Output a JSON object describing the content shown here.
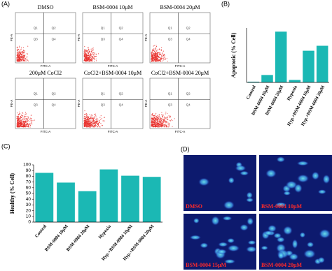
{
  "panel_labels": [
    "(A)",
    "(B)",
    "(C)",
    "(D)"
  ],
  "flow_plots": {
    "titles": [
      "DMSO",
      "BSM-0004  10μM",
      "BSM-0004  20μM",
      "200μM  CoCl2",
      "CoCl2+BSM-0004  10μM",
      "CoCl2+BSM-0004  20μM"
    ],
    "quadrants": [
      "Q1",
      "Q2",
      "Q3",
      "Q4"
    ],
    "x_label": "FITC-A",
    "y_label": "PE-A"
  },
  "chart_data": [
    {
      "type": "bar",
      "y_label": "Apoptotic (% Cell)",
      "categories": [
        "Control",
        "BSM-0004  10μM",
        "BSM-0004  20μM",
        "Hypoxia",
        "Hyp.+BSM-0004  10μM",
        "Hyp.+BSM-0004  20μM"
      ],
      "values": [
        0.3,
        3,
        20.5,
        1,
        12.8,
        14.8
      ],
      "color": "#1bb8b4",
      "ylim": [
        0,
        22
      ]
    },
    {
      "type": "bar",
      "y_label": "Healthy (% Cell)",
      "categories": [
        "Control",
        "BSM-0004  10μM",
        "BSM-0004  20μM",
        "Hypoxia",
        "Hyp.+BSM-0004  10μM",
        "Hyp.+BSM-0004  20μM"
      ],
      "values": [
        86,
        69,
        54,
        92,
        81,
        79
      ],
      "color": "#1bb8b4",
      "ylim": [
        0,
        100
      ],
      "yticks": [
        0,
        10,
        20,
        30,
        40,
        50,
        60,
        70,
        80,
        90,
        100
      ]
    }
  ],
  "micrographs": [
    "DMSO",
    "BSM-0004  10μM",
    "BSM-0004  15μM",
    "BSM-0004  20μM"
  ]
}
